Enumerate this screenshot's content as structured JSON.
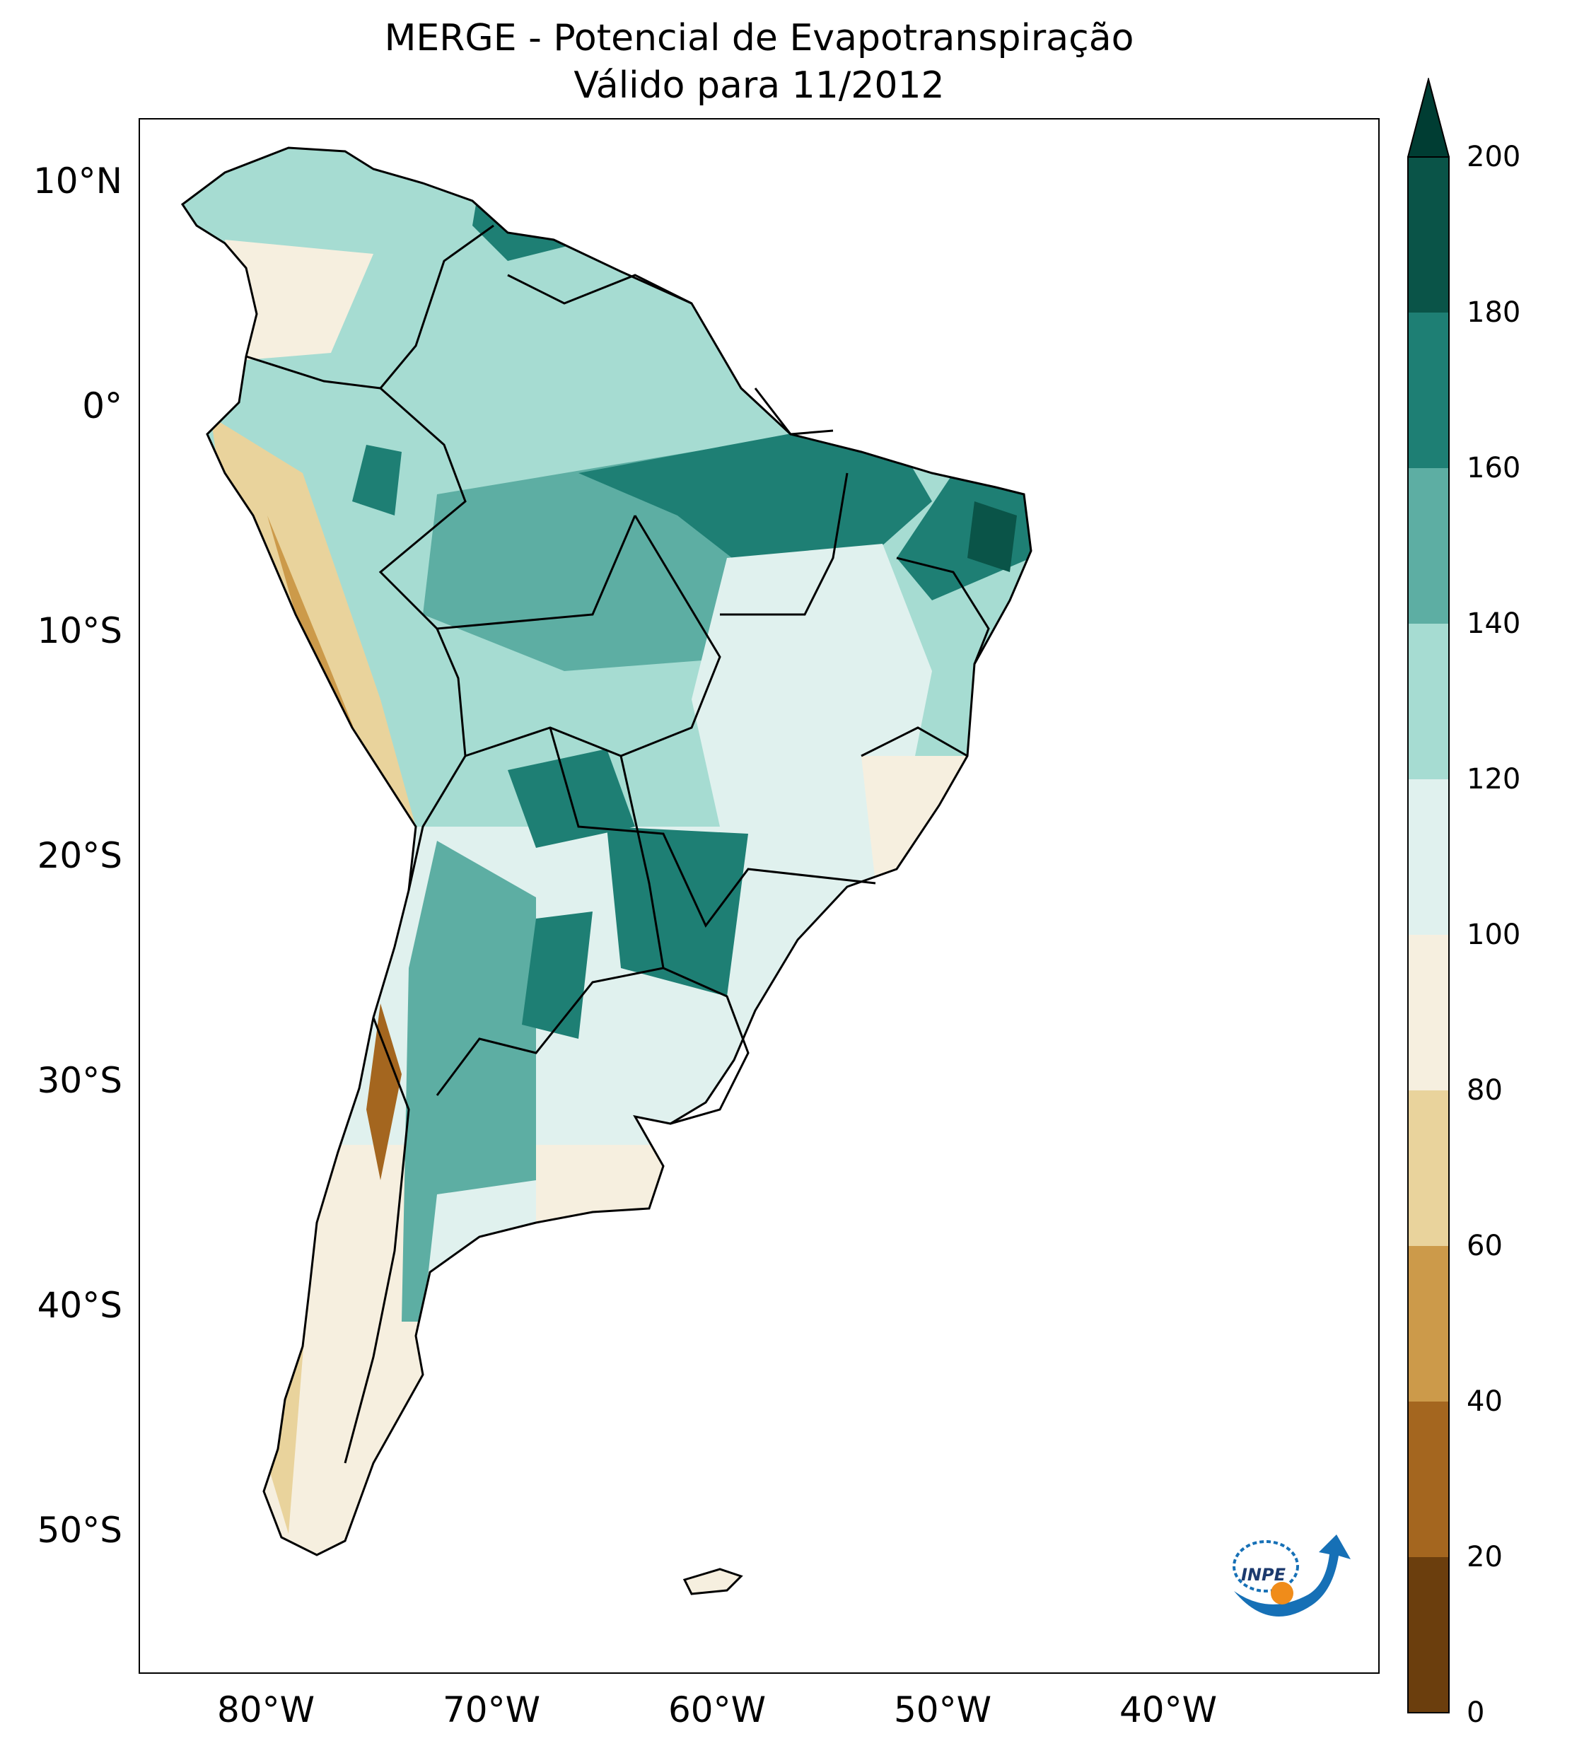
{
  "title": {
    "line1": "MERGE - Potencial de Evapotranspiração",
    "line2": "Válido para 11/2012"
  },
  "axes": {
    "lat_labels": [
      "10°N",
      "0°",
      "10°S",
      "20°S",
      "30°S",
      "40°S",
      "50°S"
    ],
    "lon_labels": [
      "80°W",
      "70°W",
      "60°W",
      "50°W",
      "40°W"
    ],
    "lat_values": [
      10,
      0,
      -10,
      -20,
      -30,
      -40,
      -50
    ],
    "lon_values": [
      -80,
      -70,
      -60,
      -50,
      -40
    ],
    "lon_range": [
      -85,
      -30
    ],
    "lat_range": [
      -56,
      13
    ]
  },
  "colorbar": {
    "tick_labels": [
      "0",
      "20",
      "40",
      "60",
      "80",
      "100",
      "120",
      "140",
      "160",
      "180",
      "200"
    ],
    "range": [
      0,
      200
    ],
    "extend": "max",
    "levels": [
      {
        "from": 0,
        "to": 20,
        "color": "#6b3e0d"
      },
      {
        "from": 20,
        "to": 40,
        "color": "#a4661f"
      },
      {
        "from": 40,
        "to": 60,
        "color": "#cc9a4a"
      },
      {
        "from": 60,
        "to": 80,
        "color": "#e9d39c"
      },
      {
        "from": 80,
        "to": 100,
        "color": "#f6efdf"
      },
      {
        "from": 100,
        "to": 120,
        "color": "#e0f1ee"
      },
      {
        "from": 120,
        "to": 140,
        "color": "#a6dcd2"
      },
      {
        "from": 140,
        "to": 160,
        "color": "#5daea3"
      },
      {
        "from": 160,
        "to": 180,
        "color": "#1e7f74"
      },
      {
        "from": 180,
        "to": 200,
        "color": "#0a5448"
      },
      {
        "from": 200,
        "to": null,
        "color": "#003d33"
      }
    ]
  },
  "logo": {
    "text": "INPE",
    "colors": {
      "blue": "#1670b6",
      "orange": "#f08c1a"
    }
  }
}
